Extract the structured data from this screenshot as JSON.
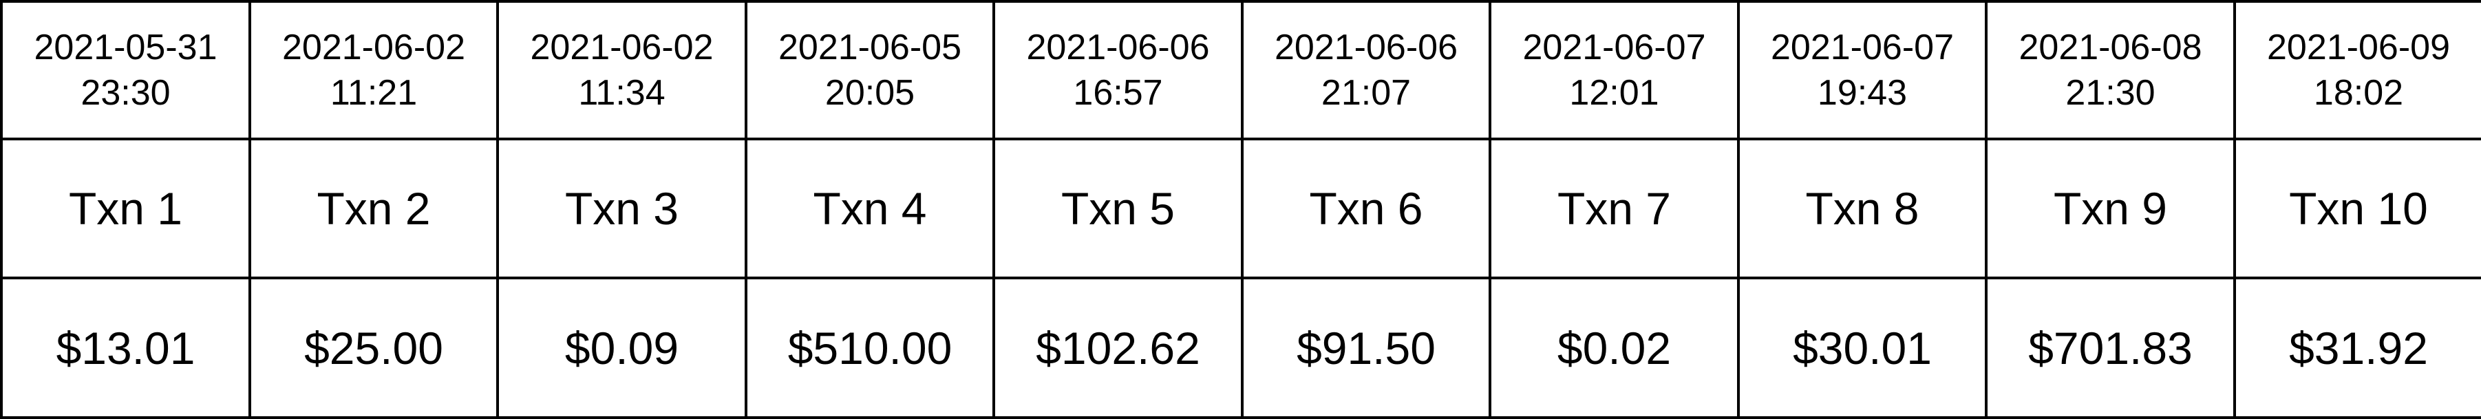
{
  "transactions": [
    {
      "date": "2021-05-31",
      "time": "23:30",
      "name": "Txn 1",
      "amount": "$13.01"
    },
    {
      "date": "2021-06-02",
      "time": "11:21",
      "name": "Txn 2",
      "amount": "$25.00"
    },
    {
      "date": "2021-06-02",
      "time": "11:34",
      "name": "Txn 3",
      "amount": "$0.09"
    },
    {
      "date": "2021-06-05",
      "time": "20:05",
      "name": "Txn 4",
      "amount": "$510.00"
    },
    {
      "date": "2021-06-06",
      "time": "16:57",
      "name": "Txn 5",
      "amount": "$102.62"
    },
    {
      "date": "2021-06-06",
      "time": "21:07",
      "name": "Txn 6",
      "amount": "$91.50"
    },
    {
      "date": "2021-06-07",
      "time": "12:01",
      "name": "Txn 7",
      "amount": "$0.02"
    },
    {
      "date": "2021-06-07",
      "time": "19:43",
      "name": "Txn 8",
      "amount": "$30.01"
    },
    {
      "date": "2021-06-08",
      "time": "21:30",
      "name": "Txn 9",
      "amount": "$701.83"
    },
    {
      "date": "2021-06-09",
      "time": "18:02",
      "name": "Txn 10",
      "amount": "$31.92"
    }
  ]
}
